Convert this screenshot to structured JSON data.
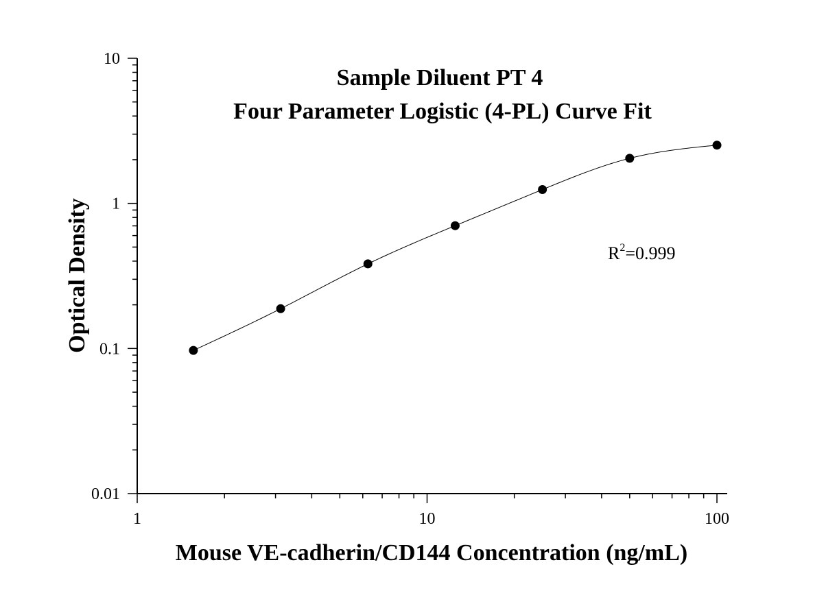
{
  "chart_data": {
    "type": "scatter",
    "title": [
      "Sample Diluent PT 4",
      "Four Parameter Logistic (4-PL) Curve Fit"
    ],
    "xlabel": "Mouse VE-cadherin/CD144 Concentration (ng/mL)",
    "ylabel": "Optical Density",
    "x_scale": "log",
    "y_scale": "log",
    "xlim": [
      1,
      100
    ],
    "ylim": [
      0.01,
      10
    ],
    "x_ticks": [
      1,
      10,
      100
    ],
    "x_tick_labels": [
      "1",
      "10",
      "100"
    ],
    "y_ticks": [
      0.01,
      0.1,
      1,
      10
    ],
    "y_tick_labels": [
      "0.01",
      "0.1",
      "1",
      "10"
    ],
    "grid": false,
    "legend": "none",
    "series": [
      {
        "kind": "points",
        "x": [
          1.5625,
          3.125,
          6.25,
          12.5,
          25,
          50,
          100
        ],
        "y": [
          0.097,
          0.188,
          0.383,
          0.702,
          1.245,
          2.045,
          2.52
        ],
        "color": "#000000"
      },
      {
        "kind": "fit-curve",
        "model": "4-PL",
        "x_range": [
          1.5625,
          100
        ],
        "color": "#000000"
      }
    ],
    "annotation": {
      "base": "R",
      "superscript": "2",
      "suffix": "=0.999"
    }
  }
}
